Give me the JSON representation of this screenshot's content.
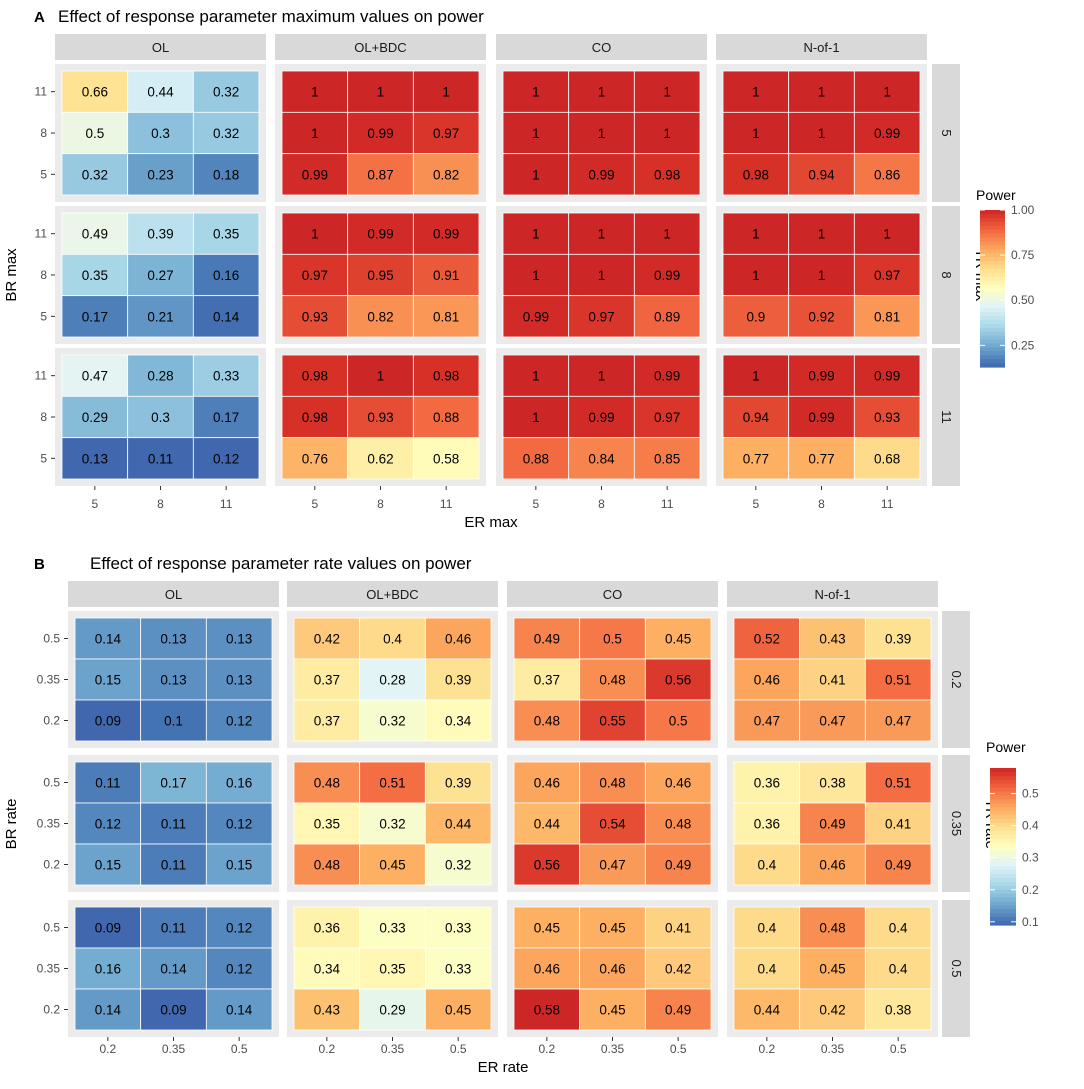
{
  "chart_data": [
    {
      "type": "heatmap",
      "panel_label": "A",
      "title": "Effect of response parameter maximum values on power",
      "xlabel": "ER max",
      "ylabel": "BR max",
      "facet_row_label": "TR max",
      "facet_columns": [
        "OL",
        "OL+BDC",
        "CO",
        "N-of-1"
      ],
      "facet_rows": [
        "5",
        "8",
        "11"
      ],
      "x_ticks": [
        "5",
        "8",
        "11"
      ],
      "y_ticks": [
        "5",
        "8",
        "11"
      ],
      "legend": {
        "title": "Power",
        "range": [
          0.13,
          1.0
        ],
        "ticks": [
          0.25,
          0.5,
          0.75,
          1.0
        ],
        "tick_labels": [
          "0.25",
          "0.50",
          "0.75",
          "1.00"
        ]
      },
      "values_note": "values[facet_row][facet_col][y_row_top_to_bottom][x_col]",
      "values": [
        [
          [
            [
              "0.66",
              "0.44",
              "0.32"
            ],
            [
              "0.5",
              "0.3",
              "0.32"
            ],
            [
              "0.32",
              "0.23",
              "0.18"
            ]
          ],
          [
            [
              "1",
              "1",
              "1"
            ],
            [
              "1",
              "0.99",
              "0.97"
            ],
            [
              "0.99",
              "0.87",
              "0.82"
            ]
          ],
          [
            [
              "1",
              "1",
              "1"
            ],
            [
              "1",
              "1",
              "1"
            ],
            [
              "1",
              "0.99",
              "0.98"
            ]
          ],
          [
            [
              "1",
              "1",
              "1"
            ],
            [
              "1",
              "1",
              "0.99"
            ],
            [
              "0.98",
              "0.94",
              "0.86"
            ]
          ]
        ],
        [
          [
            [
              "0.49",
              "0.39",
              "0.35"
            ],
            [
              "0.35",
              "0.27",
              "0.16"
            ],
            [
              "0.17",
              "0.21",
              "0.14"
            ]
          ],
          [
            [
              "1",
              "0.99",
              "0.99"
            ],
            [
              "0.97",
              "0.95",
              "0.91"
            ],
            [
              "0.93",
              "0.82",
              "0.81"
            ]
          ],
          [
            [
              "1",
              "1",
              "1"
            ],
            [
              "1",
              "1",
              "0.99"
            ],
            [
              "0.99",
              "0.97",
              "0.89"
            ]
          ],
          [
            [
              "1",
              "1",
              "1"
            ],
            [
              "1",
              "1",
              "0.97"
            ],
            [
              "0.9",
              "0.92",
              "0.81"
            ]
          ]
        ],
        [
          [
            [
              "0.47",
              "0.28",
              "0.33"
            ],
            [
              "0.29",
              "0.3",
              "0.17"
            ],
            [
              "0.13",
              "0.11",
              "0.12"
            ]
          ],
          [
            [
              "0.98",
              "1",
              "0.98"
            ],
            [
              "0.98",
              "0.93",
              "0.88"
            ],
            [
              "0.76",
              "0.62",
              "0.58"
            ]
          ],
          [
            [
              "1",
              "1",
              "0.99"
            ],
            [
              "1",
              "0.99",
              "0.97"
            ],
            [
              "0.88",
              "0.84",
              "0.85"
            ]
          ],
          [
            [
              "1",
              "0.99",
              "0.99"
            ],
            [
              "0.94",
              "0.99",
              "0.93"
            ],
            [
              "0.77",
              "0.77",
              "0.68"
            ]
          ]
        ]
      ]
    },
    {
      "type": "heatmap",
      "panel_label": "B",
      "title": "Effect of response parameter rate values on power",
      "xlabel": "ER rate",
      "ylabel": "BR rate",
      "facet_row_label": "TR rate",
      "facet_columns": [
        "OL",
        "OL+BDC",
        "CO",
        "N-of-1"
      ],
      "facet_rows": [
        "0.2",
        "0.35",
        "0.5"
      ],
      "x_ticks": [
        "0.2",
        "0.35",
        "0.5"
      ],
      "y_ticks": [
        "0.2",
        "0.35",
        "0.5"
      ],
      "legend": {
        "title": "Power",
        "range": [
          0.09,
          0.58
        ],
        "ticks": [
          0.1,
          0.2,
          0.3,
          0.4,
          0.5
        ],
        "tick_labels": [
          "0.1",
          "0.2",
          "0.3",
          "0.4",
          "0.5"
        ]
      },
      "values_note": "values[facet_row][facet_col][y_row_top_to_bottom][x_col]",
      "values": [
        [
          [
            [
              "0.14",
              "0.13",
              "0.13"
            ],
            [
              "0.15",
              "0.13",
              "0.13"
            ],
            [
              "0.09",
              "0.1",
              "0.12"
            ]
          ],
          [
            [
              "0.42",
              "0.4",
              "0.46"
            ],
            [
              "0.37",
              "0.28",
              "0.39"
            ],
            [
              "0.37",
              "0.32",
              "0.34"
            ]
          ],
          [
            [
              "0.49",
              "0.5",
              "0.45"
            ],
            [
              "0.37",
              "0.48",
              "0.56"
            ],
            [
              "0.48",
              "0.55",
              "0.5"
            ]
          ],
          [
            [
              "0.52",
              "0.43",
              "0.39"
            ],
            [
              "0.46",
              "0.41",
              "0.51"
            ],
            [
              "0.47",
              "0.47",
              "0.47"
            ]
          ]
        ],
        [
          [
            [
              "0.11",
              "0.17",
              "0.16"
            ],
            [
              "0.12",
              "0.11",
              "0.12"
            ],
            [
              "0.15",
              "0.11",
              "0.15"
            ]
          ],
          [
            [
              "0.48",
              "0.51",
              "0.39"
            ],
            [
              "0.35",
              "0.32",
              "0.44"
            ],
            [
              "0.48",
              "0.45",
              "0.32"
            ]
          ],
          [
            [
              "0.46",
              "0.48",
              "0.46"
            ],
            [
              "0.44",
              "0.54",
              "0.48"
            ],
            [
              "0.56",
              "0.47",
              "0.49"
            ]
          ],
          [
            [
              "0.36",
              "0.38",
              "0.51"
            ],
            [
              "0.36",
              "0.49",
              "0.41"
            ],
            [
              "0.4",
              "0.46",
              "0.49"
            ]
          ]
        ],
        [
          [
            [
              "0.09",
              "0.11",
              "0.12"
            ],
            [
              "0.16",
              "0.14",
              "0.12"
            ],
            [
              "0.14",
              "0.09",
              "0.14"
            ]
          ],
          [
            [
              "0.36",
              "0.33",
              "0.33"
            ],
            [
              "0.34",
              "0.35",
              "0.33"
            ],
            [
              "0.43",
              "0.29",
              "0.45"
            ]
          ],
          [
            [
              "0.45",
              "0.45",
              "0.41"
            ],
            [
              "0.46",
              "0.46",
              "0.42"
            ],
            [
              "0.58",
              "0.45",
              "0.49"
            ]
          ],
          [
            [
              "0.4",
              "0.48",
              "0.4"
            ],
            [
              "0.4",
              "0.45",
              "0.4"
            ],
            [
              "0.44",
              "0.42",
              "0.38"
            ]
          ]
        ]
      ]
    }
  ],
  "palette": [
    "#313695",
    "#4575b4",
    "#74add1",
    "#abd9e9",
    "#e0f3f8",
    "#ffffbf",
    "#fee090",
    "#fdae61",
    "#f46d43",
    "#d73027",
    "#a50026"
  ],
  "colors": {
    "strip_bg": "#d9d9d9",
    "panel_bg": "#ebebeb",
    "cell_border": "#ffffff",
    "text": "#000000",
    "axis_text": "#4d4d4d"
  }
}
